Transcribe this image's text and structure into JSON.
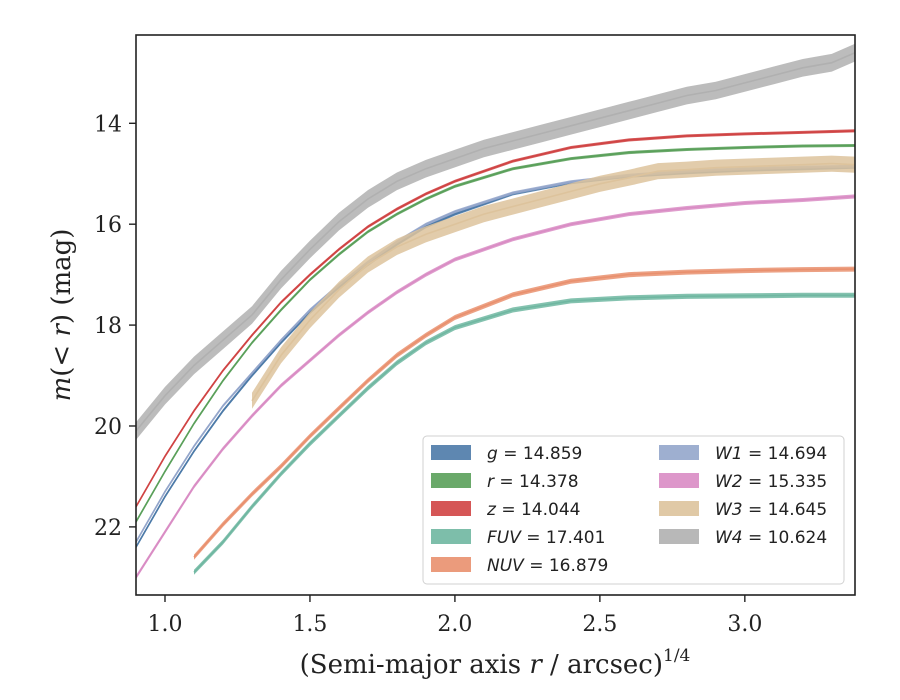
{
  "chart_data": {
    "type": "line",
    "xlabel": "(Semi-major axis r / arcsec)^{1/4}",
    "ylabel": "m(< r) (mag)",
    "xlim": [
      0.9,
      3.38
    ],
    "ylim": [
      23.35,
      12.25
    ],
    "y_inverted": true,
    "xticks": [
      1.0,
      1.5,
      2.0,
      2.5,
      3.0
    ],
    "xtick_labels": [
      "1.0",
      "1.5",
      "2.0",
      "2.5",
      "3.0"
    ],
    "yticks": [
      14,
      16,
      18,
      20,
      22
    ],
    "ytick_labels": [
      "14",
      "16",
      "18",
      "20",
      "22"
    ],
    "grid": false,
    "legend_position": "lower-right",
    "legend_columns": 2,
    "series": [
      {
        "name": "g",
        "legend_label": "g = 14.859",
        "total_mag": 14.859,
        "color": "#4c7aa8",
        "band_width": 0.06,
        "x": [
          0.9,
          1.0,
          1.1,
          1.2,
          1.3,
          1.4,
          1.5,
          1.6,
          1.7,
          1.8,
          1.9,
          2.0,
          2.2,
          2.4,
          2.6,
          2.8,
          3.0,
          3.2,
          3.38
        ],
        "y": [
          22.4,
          21.4,
          20.5,
          19.7,
          19.0,
          18.35,
          17.75,
          17.25,
          16.8,
          16.4,
          16.05,
          15.8,
          15.4,
          15.18,
          15.05,
          14.98,
          14.93,
          14.9,
          14.87
        ]
      },
      {
        "name": "r",
        "legend_label": "r = 14.378",
        "total_mag": 14.378,
        "color": "#5aa05a",
        "band_width": 0.06,
        "x": [
          0.9,
          1.0,
          1.1,
          1.2,
          1.3,
          1.4,
          1.5,
          1.6,
          1.7,
          1.8,
          1.9,
          2.0,
          2.2,
          2.4,
          2.6,
          2.8,
          3.0,
          3.2,
          3.38
        ],
        "y": [
          21.9,
          20.9,
          19.95,
          19.1,
          18.35,
          17.7,
          17.1,
          16.6,
          16.15,
          15.8,
          15.5,
          15.25,
          14.9,
          14.7,
          14.58,
          14.52,
          14.48,
          14.45,
          14.44
        ]
      },
      {
        "name": "z",
        "legend_label": "z = 14.044",
        "total_mag": 14.044,
        "color": "#d04444",
        "band_width": 0.06,
        "x": [
          0.9,
          1.0,
          1.1,
          1.2,
          1.3,
          1.4,
          1.5,
          1.6,
          1.7,
          1.8,
          1.9,
          2.0,
          2.2,
          2.4,
          2.6,
          2.8,
          3.0,
          3.2,
          3.38
        ],
        "y": [
          21.6,
          20.6,
          19.7,
          18.9,
          18.2,
          17.55,
          17.0,
          16.5,
          16.05,
          15.7,
          15.4,
          15.15,
          14.75,
          14.48,
          14.33,
          14.25,
          14.21,
          14.18,
          14.15
        ]
      },
      {
        "name": "FUV",
        "legend_label": "FUV = 17.401",
        "total_mag": 17.401,
        "color": "#6fb7a1",
        "band_width": 0.1,
        "x": [
          1.1,
          1.2,
          1.3,
          1.4,
          1.5,
          1.6,
          1.7,
          1.8,
          1.9,
          2.0,
          2.2,
          2.4,
          2.6,
          2.8,
          3.0,
          3.2,
          3.38
        ],
        "y": [
          22.9,
          22.3,
          21.6,
          20.95,
          20.35,
          19.8,
          19.25,
          18.75,
          18.35,
          18.05,
          17.7,
          17.52,
          17.46,
          17.43,
          17.42,
          17.41,
          17.41
        ]
      },
      {
        "name": "NUV",
        "legend_label": "NUV = 16.879",
        "total_mag": 16.879,
        "color": "#e9906e",
        "band_width": 0.1,
        "x": [
          1.1,
          1.2,
          1.3,
          1.4,
          1.5,
          1.6,
          1.7,
          1.8,
          1.9,
          2.0,
          2.2,
          2.4,
          2.6,
          2.8,
          3.0,
          3.2,
          3.38
        ],
        "y": [
          22.6,
          21.95,
          21.35,
          20.8,
          20.2,
          19.65,
          19.1,
          18.6,
          18.2,
          17.85,
          17.4,
          17.13,
          17.0,
          16.95,
          16.92,
          16.9,
          16.89
        ]
      },
      {
        "name": "W1",
        "legend_label": "W1 = 14.694",
        "total_mag": 14.694,
        "color": "#94a6cb",
        "band_width": 0.06,
        "x": [
          0.9,
          1.0,
          1.1,
          1.2,
          1.3,
          1.4,
          1.5,
          1.6,
          1.7,
          1.8,
          1.9,
          2.0,
          2.2,
          2.4,
          2.6,
          2.8,
          3.0,
          3.2,
          3.38
        ],
        "y": [
          22.3,
          21.3,
          20.4,
          19.6,
          18.95,
          18.3,
          17.7,
          17.2,
          16.75,
          16.35,
          16.0,
          15.75,
          15.38,
          15.16,
          15.03,
          14.95,
          14.9,
          14.87,
          14.85
        ]
      },
      {
        "name": "W2",
        "legend_label": "W2 = 15.335",
        "total_mag": 15.335,
        "color": "#d98cc4",
        "band_width": 0.08,
        "x": [
          0.9,
          1.0,
          1.1,
          1.2,
          1.3,
          1.4,
          1.5,
          1.6,
          1.7,
          1.8,
          1.9,
          2.0,
          2.2,
          2.4,
          2.6,
          2.8,
          3.0,
          3.2,
          3.38
        ],
        "y": [
          23.0,
          22.1,
          21.2,
          20.45,
          19.8,
          19.2,
          18.7,
          18.2,
          17.75,
          17.35,
          17.0,
          16.7,
          16.3,
          16.0,
          15.8,
          15.68,
          15.58,
          15.52,
          15.45
        ]
      },
      {
        "name": "W3",
        "legend_label": "W3 = 14.645",
        "total_mag": 14.645,
        "color": "#ddc39c",
        "band_width": 0.32,
        "x": [
          1.3,
          1.4,
          1.5,
          1.6,
          1.7,
          1.8,
          1.9,
          2.0,
          2.1,
          2.2,
          2.3,
          2.4,
          2.5,
          2.6,
          2.7,
          2.8,
          2.9,
          3.0,
          3.1,
          3.2,
          3.3,
          3.38
        ],
        "y": [
          19.5,
          18.6,
          17.9,
          17.3,
          16.8,
          16.45,
          16.2,
          16.0,
          15.8,
          15.65,
          15.5,
          15.35,
          15.2,
          15.08,
          14.95,
          14.92,
          14.88,
          14.86,
          14.84,
          14.82,
          14.8,
          14.82
        ]
      },
      {
        "name": "W4",
        "legend_label": "W4 = 10.624",
        "total_mag": 10.624,
        "color": "#b0b0b0",
        "band_width": 0.35,
        "x": [
          0.9,
          1.0,
          1.1,
          1.2,
          1.3,
          1.4,
          1.5,
          1.6,
          1.7,
          1.8,
          1.9,
          2.0,
          2.1,
          2.2,
          2.3,
          2.4,
          2.5,
          2.6,
          2.7,
          2.8,
          2.9,
          3.0,
          3.1,
          3.2,
          3.3,
          3.38
        ],
        "y": [
          20.1,
          19.4,
          18.8,
          18.3,
          17.8,
          17.1,
          16.5,
          15.95,
          15.5,
          15.15,
          14.9,
          14.7,
          14.5,
          14.35,
          14.2,
          14.05,
          13.9,
          13.75,
          13.6,
          13.45,
          13.35,
          13.2,
          13.05,
          12.9,
          12.8,
          12.6
        ]
      }
    ]
  }
}
